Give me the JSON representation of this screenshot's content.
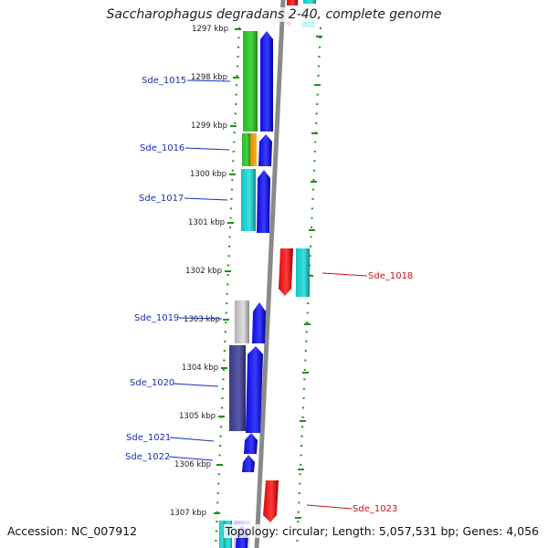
{
  "title": "Saccharophagus degradans 2-40, complete genome",
  "accession": "Accession: NC_007912",
  "summary": "Topology: circular; Length: 5,057,531 bp; Genes: 4,056",
  "colors": {
    "backbone": "#8a8a8a",
    "forward_label": "#1a2db3",
    "reverse_label": "#cc1111",
    "tick_dots": "#1f8f1f",
    "cds_forward": "#1010e6",
    "cds_reverse": "#e61010"
  },
  "kbp_ticks": [
    "1297 kbp",
    "1298 kbp",
    "1299 kbp",
    "1300 kbp",
    "1301 kbp",
    "1302 kbp",
    "1303 kbp",
    "1304 kbp",
    "1305 kbp",
    "1306 kbp",
    "1307 kbp"
  ],
  "forward_labels": [
    "Sde_1015",
    "Sde_1016",
    "Sde_1017",
    "Sde_1019",
    "Sde_1020",
    "Sde_1021",
    "Sde_1022"
  ],
  "reverse_labels": [
    "Sde_1018",
    "Sde_1023"
  ]
}
